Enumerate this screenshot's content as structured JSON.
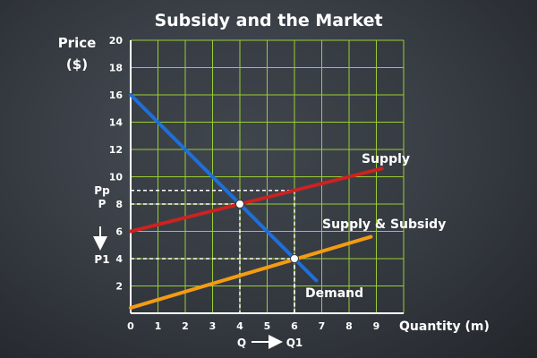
{
  "chart_data": {
    "type": "line",
    "title": "Subsidy and the Market",
    "ylabel": [
      "Price",
      "($)"
    ],
    "xlabel": "Quantity (m)",
    "xlim": [
      0,
      10
    ],
    "ylim": [
      0,
      20
    ],
    "grid": true,
    "x_ticks": [
      0,
      1,
      2,
      3,
      4,
      5,
      6,
      7,
      8,
      9
    ],
    "y_ticks": [
      2,
      4,
      6,
      8,
      10,
      12,
      14,
      16,
      18,
      20
    ],
    "series": [
      {
        "name": "Demand",
        "color": "#1f6fd6",
        "x": [
          0,
          6.8
        ],
        "y": [
          16,
          2.4
        ]
      },
      {
        "name": "Supply",
        "color": "#cc2222",
        "x": [
          0,
          9.2
        ],
        "y": [
          6,
          10.6
        ]
      },
      {
        "name": "Supply & Subsidy",
        "color": "#f39c12",
        "x": [
          0,
          8.8
        ],
        "y": [
          0.4,
          5.6
        ]
      }
    ],
    "points": [
      {
        "x": 4,
        "y": 8
      },
      {
        "x": 6,
        "y": 4
      }
    ],
    "guide_lines": [
      {
        "x": 4,
        "y": 8
      },
      {
        "x": 6,
        "y": 9
      },
      {
        "x": 6,
        "y": 4
      }
    ],
    "annotations": {
      "price_labels": [
        {
          "text": "Pp",
          "y": 9
        },
        {
          "text": "P",
          "y": 8
        },
        {
          "text": "P1",
          "y": 4
        }
      ],
      "quantity_labels": [
        {
          "text": "Q",
          "x": 4
        },
        {
          "text": "Q1",
          "x": 6
        }
      ]
    }
  }
}
